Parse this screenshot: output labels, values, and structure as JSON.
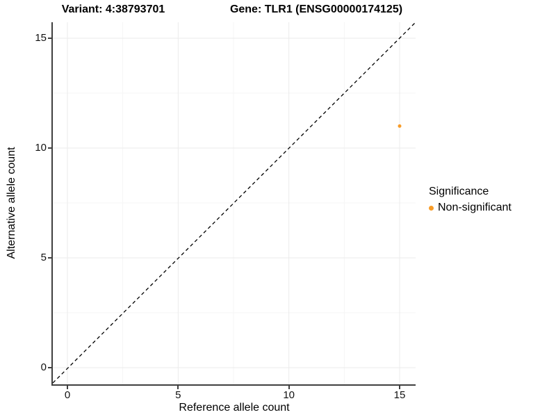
{
  "titles": {
    "variant": "Variant: 4:38793701",
    "gene": "Gene: TLR1 (ENSG00000174125)"
  },
  "axes": {
    "x": {
      "label": "Reference allele count",
      "ticks": [
        0,
        5,
        10,
        15
      ]
    },
    "y": {
      "label": "Alternative allele count",
      "ticks": [
        0,
        5,
        10,
        15
      ]
    }
  },
  "legend": {
    "title": "Significance",
    "items": [
      {
        "label": "Non-significant",
        "color": "#F89C28"
      }
    ]
  },
  "colors": {
    "point_orange": "#F89C28",
    "axis_line": "#3f3f3f",
    "grid_major": "#ebebeb",
    "grid_minor": "#f5f5f5",
    "identity_line": "#000000",
    "background": "#ffffff"
  },
  "chart_data": {
    "type": "scatter",
    "title": "Variant: 4:38793701 | Gene: TLR1 (ENSG00000174125)",
    "xlabel": "Reference allele count",
    "ylabel": "Alternative allele count",
    "xlim": [
      0,
      15
    ],
    "ylim": [
      0,
      15
    ],
    "x_ticks": [
      0,
      5,
      10,
      15
    ],
    "y_ticks": [
      0,
      5,
      10,
      15
    ],
    "minor_ticks": [
      2.5,
      7.5,
      12.5
    ],
    "grid": "major and minor, very light gray on white",
    "legend_position": "right",
    "reference_line": {
      "equation": "y = x",
      "style": "dashed",
      "color": "#000000"
    },
    "series": [
      {
        "name": "Non-significant",
        "color": "#F89C28",
        "points": [
          {
            "x": 15,
            "y": 11
          }
        ]
      }
    ]
  }
}
